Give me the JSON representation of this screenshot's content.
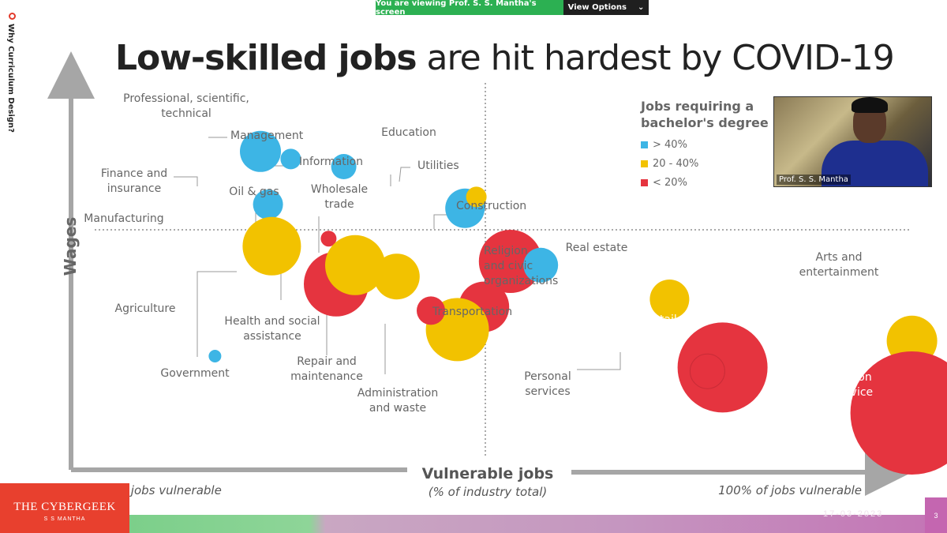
{
  "share_bar": {
    "viewing_text": "You are viewing Prof. S. S. Mantha's screen",
    "view_options_label": "View Options",
    "chevron_icon": "chevron-down-icon"
  },
  "side_title": "Why Curriculum Design?",
  "slide": {
    "title_bold": "Low-skilled jobs",
    "title_rest": " are hit hardest by COVID-19",
    "y_axis_label": "Wages",
    "x_axis_label": "Vulnerable jobs",
    "x_axis_sub": "(% of industry total)",
    "x_left_note": "0% of jobs vulnerable",
    "x_right_note": "100% of jobs vulnerable",
    "date": "17-03-2023",
    "page_number": "3"
  },
  "legend": {
    "title_line1": "Jobs requiring a",
    "title_line2": "bachelor's degree",
    "items": [
      {
        "label": "> 40%",
        "color": "#3db5e5"
      },
      {
        "label": "20 - 40%",
        "color": "#f2c200"
      },
      {
        "label": "< 20%",
        "color": "#e5343f"
      }
    ]
  },
  "video": {
    "participant_name": "Prof. S. S. Mantha"
  },
  "brand": {
    "name": "THE CYBERGEEK",
    "sub": "S S MANTHA"
  },
  "colors": {
    "high": "#3db5e5",
    "mid": "#f2c200",
    "low": "#e5343f",
    "axis": "#a6a6a6",
    "label": "#666666"
  },
  "chart_data": {
    "type": "bubble",
    "xlabel": "Vulnerable jobs (% of industry total)",
    "ylabel": "Wages",
    "bubbles": [
      {
        "name": "Professional, scientific, technical",
        "x": 25,
        "y": 84,
        "size": 26,
        "degree": "> 40%"
      },
      {
        "name": "Management",
        "x": 29,
        "y": 82,
        "size": 13,
        "degree": "> 40%"
      },
      {
        "name": "Information",
        "x": 36,
        "y": 80,
        "size": 16,
        "degree": "> 40%"
      },
      {
        "name": "Education",
        "x": 52,
        "y": 69,
        "size": 25,
        "degree": "> 40%"
      },
      {
        "name": "Utilities",
        "x": 53.5,
        "y": 72,
        "size": 13,
        "degree": "20 - 40%"
      },
      {
        "name": "Finance and insurance",
        "x": 26,
        "y": 70,
        "size": 19,
        "degree": "> 40%"
      },
      {
        "name": "Manufacturing",
        "x": 26.5,
        "y": 59,
        "size": 37,
        "degree": "20 - 40%"
      },
      {
        "name": "Oil & gas",
        "x": 34,
        "y": 61,
        "size": 10,
        "degree": "< 20%"
      },
      {
        "name": "Wholesale trade",
        "x": 43,
        "y": 51,
        "size": 29,
        "degree": "20 - 40%"
      },
      {
        "name": "Health and social assistance",
        "x": 35,
        "y": 49,
        "size": 41,
        "degree": "< 20%"
      },
      {
        "name": "Government",
        "x": 37.5,
        "y": 54,
        "size": 38,
        "degree": "20 - 40%"
      },
      {
        "name": "Agriculture",
        "x": 19,
        "y": 30,
        "size": 8,
        "degree": "> 40%"
      },
      {
        "name": "Construction",
        "x": 58,
        "y": 55,
        "size": 40,
        "degree": "< 20%"
      },
      {
        "name": "Religion and civic organizations",
        "x": 62,
        "y": 54,
        "size": 22,
        "degree": "> 40%"
      },
      {
        "name": "Transportation",
        "x": 54.5,
        "y": 43,
        "size": 32,
        "degree": "< 20%"
      },
      {
        "name": "Administration and waste",
        "x": 51,
        "y": 37,
        "size": 40,
        "degree": "20 - 40%"
      },
      {
        "name": "Repair and maintenance",
        "x": 47.5,
        "y": 42,
        "size": 18,
        "degree": "< 20%"
      },
      {
        "name": "Real estate",
        "x": 79,
        "y": 45,
        "size": 25,
        "degree": "20 - 40%"
      },
      {
        "name": "Retail trade",
        "x": 86,
        "y": 27,
        "size": 57,
        "degree": "< 20%"
      },
      {
        "name": "Personal services",
        "x": 84,
        "y": 26,
        "size": 22,
        "degree": "< 20%"
      },
      {
        "name": "Arts and entertainment",
        "x": 111,
        "y": 34,
        "size": 32,
        "degree": "20 - 40%"
      },
      {
        "name": "Accommodation and food service",
        "x": 111,
        "y": 15,
        "size": 78,
        "degree": "< 20%"
      }
    ]
  }
}
